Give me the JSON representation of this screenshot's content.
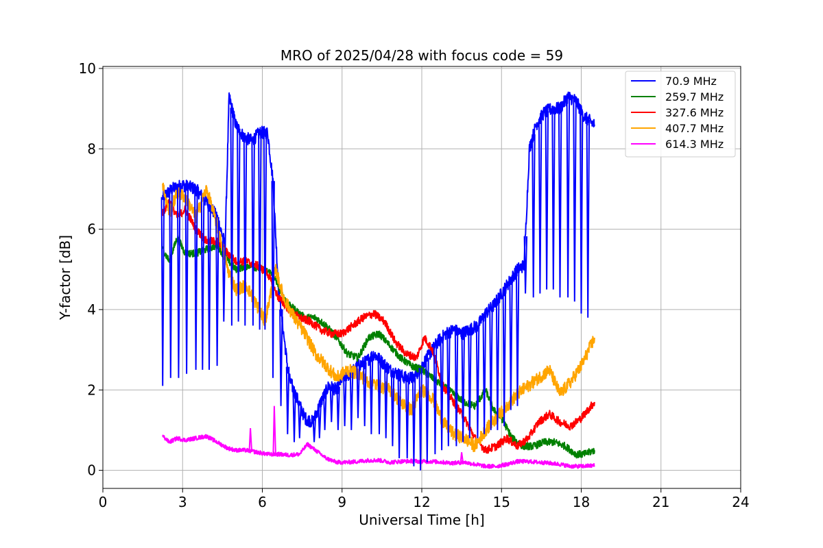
{
  "chart_data": {
    "type": "line",
    "title": "MRO of 2025/04/28 with focus code = 59",
    "xlabel": "Universal Time [h]",
    "ylabel": "Y-factor [dB]",
    "xlim": [
      0,
      24
    ],
    "ylim": [
      -0.45,
      10.05
    ],
    "xticks": [
      0,
      3,
      6,
      9,
      12,
      15,
      18,
      21,
      24
    ],
    "yticks": [
      0,
      2,
      4,
      6,
      8,
      10
    ],
    "grid": true,
    "legend_position": "top-right",
    "series": [
      {
        "name": " 70.9 MHz",
        "color": "#0000ff",
        "points": [
          [
            2.25,
            6.8
          ],
          [
            2.6,
            7.0
          ],
          [
            3.0,
            7.1
          ],
          [
            3.5,
            7.0
          ],
          [
            4.0,
            6.6
          ],
          [
            4.3,
            6.3
          ],
          [
            4.6,
            5.6
          ],
          [
            4.75,
            9.3
          ],
          [
            5.0,
            8.6
          ],
          [
            5.3,
            8.3
          ],
          [
            5.6,
            8.2
          ],
          [
            5.9,
            8.4
          ],
          [
            6.2,
            8.4
          ],
          [
            6.4,
            7.2
          ],
          [
            6.6,
            4.6
          ],
          [
            6.8,
            3.4
          ],
          [
            7.0,
            2.3
          ],
          [
            7.3,
            1.8
          ],
          [
            7.6,
            1.3
          ],
          [
            7.9,
            1.2
          ],
          [
            8.2,
            1.7
          ],
          [
            8.5,
            2.1
          ],
          [
            8.8,
            2.0
          ],
          [
            9.0,
            2.3
          ],
          [
            9.3,
            2.4
          ],
          [
            9.6,
            2.6
          ],
          [
            9.9,
            2.7
          ],
          [
            10.2,
            2.9
          ],
          [
            10.5,
            2.7
          ],
          [
            10.8,
            2.5
          ],
          [
            11.1,
            2.4
          ],
          [
            11.4,
            2.3
          ],
          [
            11.7,
            2.3
          ],
          [
            12.0,
            2.6
          ],
          [
            12.3,
            2.9
          ],
          [
            12.6,
            3.2
          ],
          [
            12.9,
            3.4
          ],
          [
            13.2,
            3.5
          ],
          [
            13.5,
            3.4
          ],
          [
            13.8,
            3.5
          ],
          [
            14.1,
            3.6
          ],
          [
            14.4,
            3.9
          ],
          [
            14.7,
            4.1
          ],
          [
            15.0,
            4.4
          ],
          [
            15.3,
            4.7
          ],
          [
            15.6,
            5.0
          ],
          [
            15.85,
            5.1
          ],
          [
            16.05,
            8.0
          ],
          [
            16.3,
            8.6
          ],
          [
            16.6,
            8.9
          ],
          [
            16.9,
            9.0
          ],
          [
            17.2,
            9.0
          ],
          [
            17.5,
            9.3
          ],
          [
            17.8,
            9.2
          ],
          [
            18.1,
            8.8
          ],
          [
            18.5,
            8.6
          ]
        ]
      },
      {
        "name": "259.7 MHz",
        "color": "#008000",
        "points": [
          [
            2.25,
            5.5
          ],
          [
            2.5,
            5.2
          ],
          [
            2.8,
            5.8
          ],
          [
            3.1,
            5.4
          ],
          [
            3.5,
            5.4
          ],
          [
            3.9,
            5.5
          ],
          [
            4.3,
            5.6
          ],
          [
            4.6,
            5.3
          ],
          [
            5.0,
            5.0
          ],
          [
            5.5,
            5.1
          ],
          [
            6.0,
            5.0
          ],
          [
            6.4,
            4.9
          ],
          [
            6.8,
            4.3
          ],
          [
            7.2,
            4.0
          ],
          [
            7.6,
            3.8
          ],
          [
            8.0,
            3.8
          ],
          [
            8.4,
            3.6
          ],
          [
            8.8,
            3.3
          ],
          [
            9.2,
            2.9
          ],
          [
            9.6,
            2.8
          ],
          [
            10.0,
            3.3
          ],
          [
            10.4,
            3.4
          ],
          [
            10.8,
            3.1
          ],
          [
            11.2,
            2.8
          ],
          [
            11.6,
            2.6
          ],
          [
            12.0,
            2.5
          ],
          [
            12.4,
            2.3
          ],
          [
            12.8,
            2.1
          ],
          [
            13.2,
            1.9
          ],
          [
            13.6,
            1.7
          ],
          [
            14.0,
            1.6
          ],
          [
            14.4,
            2.0
          ],
          [
            14.7,
            1.5
          ],
          [
            15.0,
            1.3
          ],
          [
            15.4,
            0.8
          ],
          [
            15.8,
            0.6
          ],
          [
            16.2,
            0.6
          ],
          [
            16.6,
            0.7
          ],
          [
            17.0,
            0.7
          ],
          [
            17.4,
            0.6
          ],
          [
            17.8,
            0.4
          ],
          [
            18.1,
            0.4
          ],
          [
            18.5,
            0.5
          ]
        ]
      },
      {
        "name": "327.6 MHz",
        "color": "#ff0000",
        "points": [
          [
            2.25,
            6.4
          ],
          [
            2.5,
            6.7
          ],
          [
            2.8,
            6.3
          ],
          [
            3.1,
            6.5
          ],
          [
            3.5,
            6.0
          ],
          [
            3.9,
            5.7
          ],
          [
            4.3,
            5.7
          ],
          [
            4.7,
            5.4
          ],
          [
            5.0,
            5.2
          ],
          [
            5.4,
            5.2
          ],
          [
            5.8,
            5.1
          ],
          [
            6.2,
            4.9
          ],
          [
            6.6,
            4.3
          ],
          [
            7.0,
            4.0
          ],
          [
            7.4,
            3.8
          ],
          [
            7.8,
            3.7
          ],
          [
            8.2,
            3.5
          ],
          [
            8.6,
            3.4
          ],
          [
            9.0,
            3.4
          ],
          [
            9.4,
            3.6
          ],
          [
            9.8,
            3.8
          ],
          [
            10.2,
            3.9
          ],
          [
            10.6,
            3.7
          ],
          [
            11.0,
            3.2
          ],
          [
            11.4,
            2.9
          ],
          [
            11.8,
            2.8
          ],
          [
            12.1,
            3.3
          ],
          [
            12.4,
            3.0
          ],
          [
            12.8,
            2.1
          ],
          [
            13.2,
            1.7
          ],
          [
            13.6,
            1.3
          ],
          [
            14.0,
            0.8
          ],
          [
            14.4,
            0.5
          ],
          [
            14.8,
            0.6
          ],
          [
            15.2,
            0.8
          ],
          [
            15.6,
            0.6
          ],
          [
            16.0,
            0.8
          ],
          [
            16.4,
            1.2
          ],
          [
            16.8,
            1.4
          ],
          [
            17.2,
            1.2
          ],
          [
            17.6,
            1.1
          ],
          [
            18.0,
            1.3
          ],
          [
            18.5,
            1.7
          ]
        ]
      },
      {
        "name": "407.7 MHz",
        "color": "#ffa500",
        "points": [
          [
            2.25,
            7.1
          ],
          [
            2.5,
            6.4
          ],
          [
            2.8,
            6.9
          ],
          [
            3.1,
            6.8
          ],
          [
            3.5,
            6.3
          ],
          [
            3.9,
            7.0
          ],
          [
            4.3,
            6.1
          ],
          [
            4.7,
            5.0
          ],
          [
            5.0,
            4.5
          ],
          [
            5.4,
            4.6
          ],
          [
            5.8,
            4.1
          ],
          [
            6.1,
            3.7
          ],
          [
            6.5,
            5.0
          ],
          [
            6.8,
            4.3
          ],
          [
            7.2,
            3.8
          ],
          [
            7.6,
            3.4
          ],
          [
            8.0,
            2.9
          ],
          [
            8.4,
            2.6
          ],
          [
            8.8,
            2.3
          ],
          [
            9.2,
            2.5
          ],
          [
            9.6,
            2.4
          ],
          [
            10.0,
            2.2
          ],
          [
            10.4,
            2.1
          ],
          [
            10.8,
            2.0
          ],
          [
            11.2,
            1.7
          ],
          [
            11.6,
            1.5
          ],
          [
            12.0,
            2.0
          ],
          [
            12.4,
            1.8
          ],
          [
            12.8,
            1.2
          ],
          [
            13.2,
            0.9
          ],
          [
            13.6,
            0.8
          ],
          [
            14.0,
            0.6
          ],
          [
            14.4,
            1.0
          ],
          [
            14.8,
            1.3
          ],
          [
            15.2,
            1.6
          ],
          [
            15.6,
            1.9
          ],
          [
            16.0,
            2.1
          ],
          [
            16.4,
            2.3
          ],
          [
            16.8,
            2.5
          ],
          [
            17.2,
            1.9
          ],
          [
            17.6,
            2.2
          ],
          [
            18.0,
            2.6
          ],
          [
            18.5,
            3.3
          ]
        ]
      },
      {
        "name": "614.3 MHz",
        "color": "#ff00ff",
        "points": [
          [
            2.25,
            0.85
          ],
          [
            2.5,
            0.7
          ],
          [
            2.8,
            0.8
          ],
          [
            3.1,
            0.75
          ],
          [
            3.5,
            0.8
          ],
          [
            3.9,
            0.85
          ],
          [
            4.3,
            0.7
          ],
          [
            4.7,
            0.55
          ],
          [
            5.0,
            0.5
          ],
          [
            5.4,
            0.5
          ],
          [
            5.8,
            0.45
          ],
          [
            6.2,
            0.4
          ],
          [
            6.6,
            0.4
          ],
          [
            7.0,
            0.38
          ],
          [
            7.4,
            0.4
          ],
          [
            7.7,
            0.65
          ],
          [
            8.0,
            0.5
          ],
          [
            8.4,
            0.3
          ],
          [
            8.8,
            0.2
          ],
          [
            9.2,
            0.2
          ],
          [
            9.6,
            0.22
          ],
          [
            10.0,
            0.25
          ],
          [
            10.4,
            0.25
          ],
          [
            10.8,
            0.2
          ],
          [
            11.2,
            0.22
          ],
          [
            11.6,
            0.23
          ],
          [
            12.0,
            0.22
          ],
          [
            12.4,
            0.22
          ],
          [
            12.8,
            0.2
          ],
          [
            13.2,
            0.18
          ],
          [
            13.6,
            0.2
          ],
          [
            14.0,
            0.15
          ],
          [
            14.4,
            0.1
          ],
          [
            14.8,
            0.1
          ],
          [
            15.2,
            0.15
          ],
          [
            15.6,
            0.22
          ],
          [
            16.0,
            0.22
          ],
          [
            16.4,
            0.2
          ],
          [
            16.8,
            0.18
          ],
          [
            17.2,
            0.15
          ],
          [
            17.6,
            0.1
          ],
          [
            18.0,
            0.1
          ],
          [
            18.5,
            0.12
          ]
        ]
      }
    ],
    "spikes": [
      {
        "series": 0,
        "x": [
          2.25,
          2.55,
          2.85,
          3.15,
          3.5,
          3.75,
          4.0,
          4.3,
          4.55,
          4.85,
          5.1,
          5.35,
          5.65,
          5.9,
          6.1,
          6.4,
          6.7,
          6.95,
          7.2,
          7.4,
          7.7,
          7.95,
          8.15,
          8.35,
          8.6,
          8.85,
          9.1,
          9.35,
          9.6,
          9.85,
          10.1,
          10.4,
          10.65,
          10.9,
          11.15,
          11.45,
          11.7,
          11.95,
          12.2,
          12.5,
          12.75,
          13.0,
          13.3,
          13.55,
          13.8,
          14.1,
          14.35,
          14.6,
          14.85,
          15.1,
          15.35,
          15.6,
          15.9,
          16.2,
          16.45,
          16.7,
          16.95,
          17.2,
          17.5,
          17.75,
          18.0,
          18.25
        ],
        "to": [
          2.1,
          2.3,
          2.3,
          2.4,
          2.5,
          2.5,
          2.5,
          2.6,
          3.7,
          3.6,
          3.7,
          3.6,
          3.6,
          3.5,
          3.5,
          2.3,
          1.6,
          0.9,
          0.7,
          0.8,
          1.1,
          0.7,
          0.8,
          1.0,
          1.2,
          1.0,
          1.1,
          1.0,
          1.3,
          1.1,
          0.9,
          0.9,
          0.8,
          0.6,
          0.3,
          0.3,
          0.1,
          0.0,
          0.2,
          0.4,
          0.5,
          0.6,
          0.6,
          0.7,
          0.8,
          0.8,
          0.9,
          1.0,
          1.0,
          1.1,
          1.5,
          1.6,
          4.4,
          4.3,
          4.4,
          4.5,
          4.5,
          4.3,
          4.3,
          4.2,
          3.9,
          3.8
        ]
      },
      {
        "series": 4,
        "x": [
          5.55,
          6.45,
          13.5
        ],
        "to": [
          1.05,
          1.6,
          0.45
        ]
      }
    ]
  }
}
